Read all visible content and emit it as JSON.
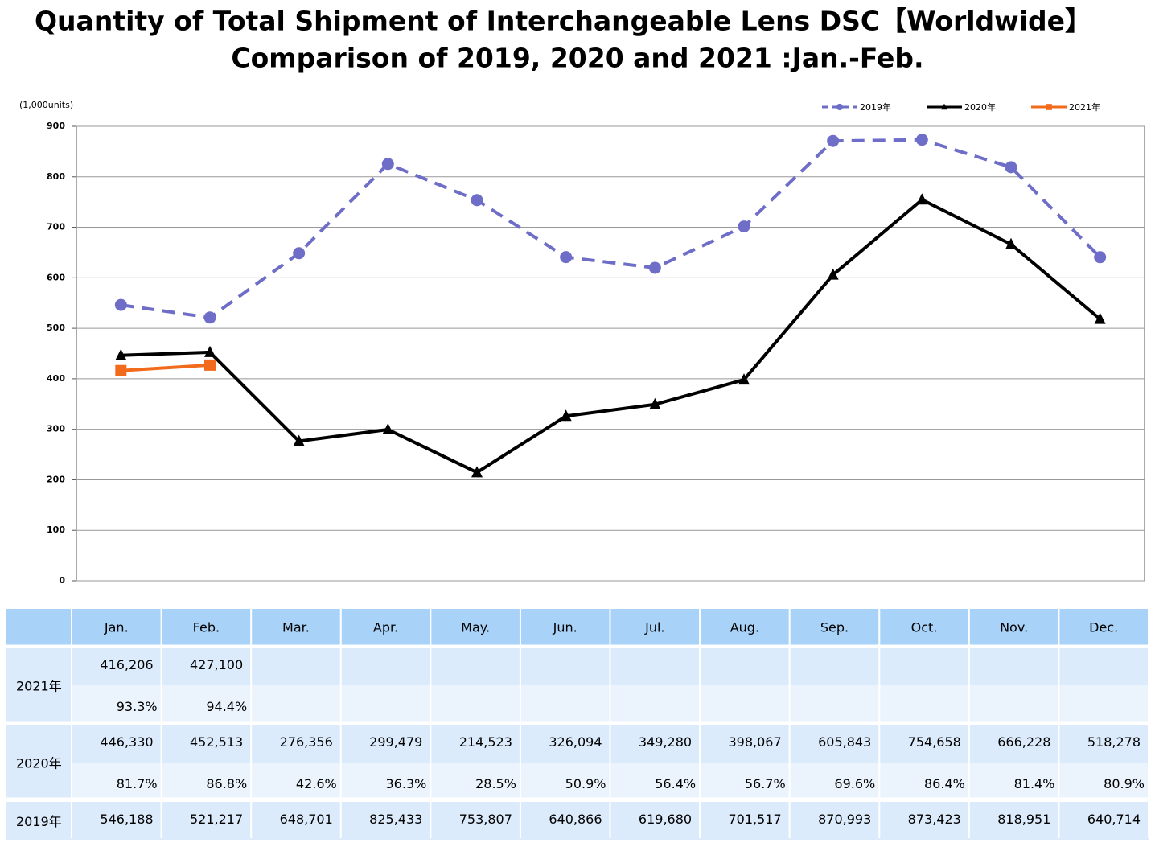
{
  "chart_data": {
    "type": "line",
    "title": "Quantity of Total Shipment of Interchangeable Lens DSC【Worldwide】",
    "subtitle": "Comparison of 2019, 2020 and 2021 :Jan.-Feb.",
    "y_label": "(1,000units)",
    "categories": [
      "Jan.",
      "Feb.",
      "Mar.",
      "Apr.",
      "May.",
      "Jun.",
      "Jul.",
      "Aug.",
      "Sep.",
      "Oct.",
      "Nov.",
      "Dec."
    ],
    "ylim": [
      0,
      900
    ],
    "yticks": [
      0,
      100,
      200,
      300,
      400,
      500,
      600,
      700,
      800,
      900
    ],
    "grid": true,
    "legend": "top-right",
    "series": [
      {
        "name": "2019年",
        "color": "#6e6ec8",
        "dashed": true,
        "marker": "circle",
        "values": [
          546.188,
          521.217,
          648.701,
          825.433,
          753.807,
          640.866,
          619.68,
          701.517,
          870.993,
          873.423,
          818.951,
          640.714
        ],
        "value_labels": [
          "546,188",
          "521,217",
          "648,701",
          "825,433",
          "753,807",
          "640,866",
          "619,680",
          "701,517",
          "870,993",
          "873,423",
          "818,951",
          "640,714"
        ]
      },
      {
        "name": "2020年",
        "color": "#000000",
        "dashed": false,
        "marker": "triangle",
        "values": [
          446.33,
          452.513,
          276.356,
          299.479,
          214.523,
          326.094,
          349.28,
          398.067,
          605.843,
          754.658,
          666.228,
          518.278
        ],
        "value_labels": [
          "446,330",
          "452,513",
          "276,356",
          "299,479",
          "214,523",
          "326,094",
          "349,280",
          "398,067",
          "605,843",
          "754,658",
          "666,228",
          "518,278"
        ],
        "ratio_labels": [
          "81.7%",
          "86.8%",
          "42.6%",
          "36.3%",
          "28.5%",
          "50.9%",
          "56.4%",
          "56.7%",
          "69.6%",
          "86.4%",
          "81.4%",
          "80.9%"
        ]
      },
      {
        "name": "2021年",
        "color": "#f26b1d",
        "dashed": false,
        "marker": "square",
        "values": [
          416.206,
          427.1,
          null,
          null,
          null,
          null,
          null,
          null,
          null,
          null,
          null,
          null
        ],
        "value_labels": [
          "416,206",
          "427,100",
          null,
          null,
          null,
          null,
          null,
          null,
          null,
          null,
          null,
          null
        ],
        "ratio_labels": [
          "93.3%",
          "94.4%",
          null,
          null,
          null,
          null,
          null,
          null,
          null,
          null,
          null,
          null
        ]
      }
    ]
  }
}
